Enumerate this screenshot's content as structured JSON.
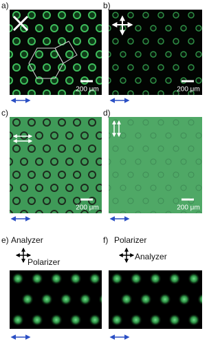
{
  "panels": [
    {
      "label": "a)",
      "scale_bar": "200 μm"
    },
    {
      "label": "b)",
      "scale_bar": "200 μm"
    },
    {
      "label": "c)",
      "scale_bar": "200 μm"
    },
    {
      "label": "d)",
      "scale_bar": "200 μm"
    },
    {
      "label": "e)",
      "top_text": "Analyzer",
      "side_text": "Polarizer"
    },
    {
      "label": "f)",
      "top_text": "Polarizer",
      "side_text": "Analyzer"
    }
  ]
}
